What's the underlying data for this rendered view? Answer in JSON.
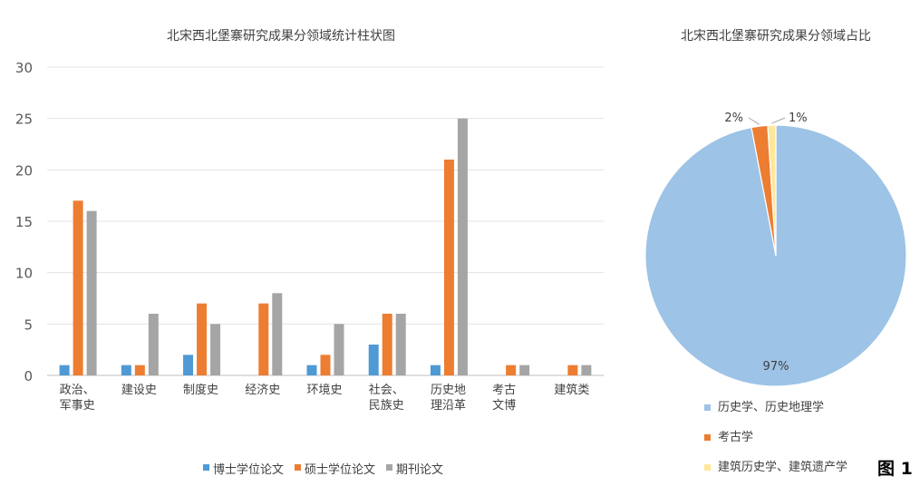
{
  "figure_label": "图 1",
  "chart_data": [
    {
      "type": "bar",
      "title": "北宋西北堡寨研究成果分领域统计柱状图",
      "categories": [
        [
          "政治、",
          "军事史"
        ],
        [
          "建设史"
        ],
        [
          "制度史"
        ],
        [
          "经济史"
        ],
        [
          "环境史"
        ],
        [
          "社会、",
          "民族史"
        ],
        [
          "历史地",
          "理沿革"
        ],
        [
          "考古",
          "文博"
        ],
        [
          "建筑类"
        ]
      ],
      "series": [
        {
          "name": "博士学位论文",
          "color": "#4f9ad4",
          "values": [
            1,
            1,
            2,
            0,
            1,
            3,
            1,
            0,
            0
          ]
        },
        {
          "name": "硕士学位论文",
          "color": "#ed7d31",
          "values": [
            17,
            1,
            7,
            7,
            2,
            6,
            21,
            1,
            1
          ]
        },
        {
          "name": "期刊论文",
          "color": "#a5a5a5",
          "values": [
            16,
            6,
            5,
            8,
            5,
            6,
            25,
            1,
            1
          ]
        }
      ],
      "ylim": [
        0,
        30
      ],
      "yticks": [
        0,
        5,
        10,
        15,
        20,
        25,
        30
      ],
      "grid": true,
      "legend_position": "bottom"
    },
    {
      "type": "pie",
      "title": "北宋西北堡寨研究成果分领域占比",
      "slices": [
        {
          "label": "历史学、历史地理学",
          "value": 97,
          "display": "97%",
          "color": "#9dc3e6"
        },
        {
          "label": "考古学",
          "value": 2,
          "display": "2%",
          "color": "#ed7d31"
        },
        {
          "label": "建筑历史学、建筑遗产学",
          "value": 1,
          "display": "1%",
          "color": "#ffe699"
        }
      ],
      "legend_position": "bottom"
    }
  ]
}
